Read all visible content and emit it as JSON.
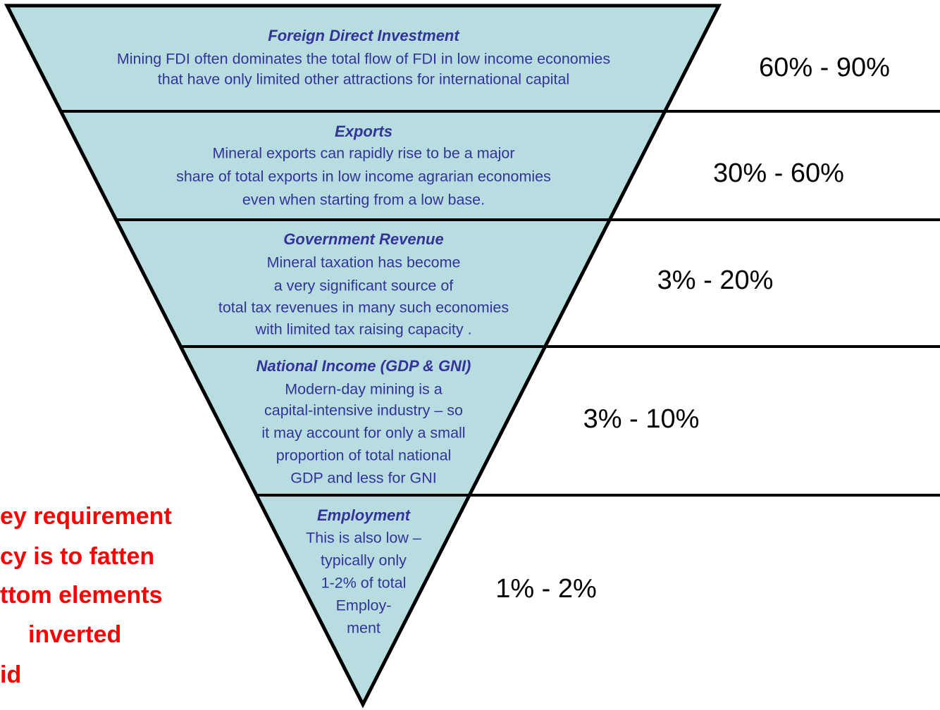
{
  "levels": [
    {
      "title": "Foreign Direct Investment",
      "lines": [
        "Mining FDI often dominates the total flow of FDI in low income economies",
        "that have only limited other attractions for international capital"
      ],
      "range": "60% - 90%"
    },
    {
      "title": "Exports",
      "lines": [
        "Mineral exports can rapidly rise to be a major",
        "share of total exports in low income agrarian economies",
        "even when starting from a low base."
      ],
      "range": "30% - 60%"
    },
    {
      "title": "Government Revenue",
      "lines": [
        "Mineral taxation has become",
        "a very significant source of",
        "total tax revenues in many such economies",
        "with limited tax raising capacity ."
      ],
      "range": "3% - 20%"
    },
    {
      "title": "National Income (GDP & GNI)",
      "lines": [
        "Modern-day mining is a",
        "capital-intensive industry – so",
        "it may account for only a small",
        "proportion of total national",
        "GDP and less for GNI"
      ],
      "range": "3% - 10%"
    },
    {
      "title": "Employment",
      "lines": [
        "This is also low –",
        "typically only",
        "1-2% of total",
        "Employ-",
        "ment"
      ],
      "range": "1% - 2%"
    }
  ],
  "note": {
    "lines": [
      "ey requirement",
      "cy is to fatten",
      "ttom elements",
      "inverted",
      "id"
    ]
  }
}
